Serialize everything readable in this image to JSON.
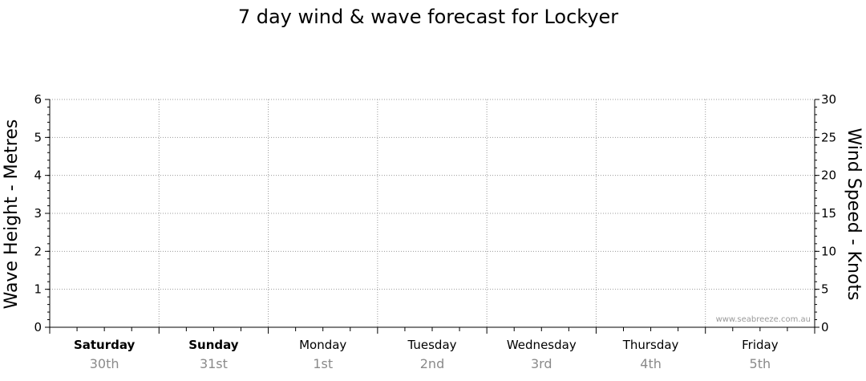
{
  "chart_data": {
    "type": "line",
    "title": "7 day wind & wave forecast for Lockyer",
    "ylabel_left": "Wave Height - Metres",
    "ylabel_right": "Wind Speed - Knots",
    "ylim_left": [
      0,
      6
    ],
    "ylim_right": [
      0,
      30
    ],
    "yticks_left": [
      "0",
      "1",
      "2",
      "3",
      "4",
      "5",
      "6"
    ],
    "yticks_right": [
      "0",
      "5",
      "10",
      "15",
      "20",
      "25",
      "30"
    ],
    "grid": true,
    "days": [
      {
        "day": "Saturday",
        "date": "30th",
        "bold": true
      },
      {
        "day": "Sunday",
        "date": "31st",
        "bold": true
      },
      {
        "day": "Monday",
        "date": "1st",
        "bold": false
      },
      {
        "day": "Tuesday",
        "date": "2nd",
        "bold": false
      },
      {
        "day": "Wednesday",
        "date": "3rd",
        "bold": false
      },
      {
        "day": "Thursday",
        "date": "4th",
        "bold": false
      },
      {
        "day": "Friday",
        "date": "5th",
        "bold": false
      }
    ],
    "series": [],
    "watermark": "www.seabreeze.com.au"
  }
}
